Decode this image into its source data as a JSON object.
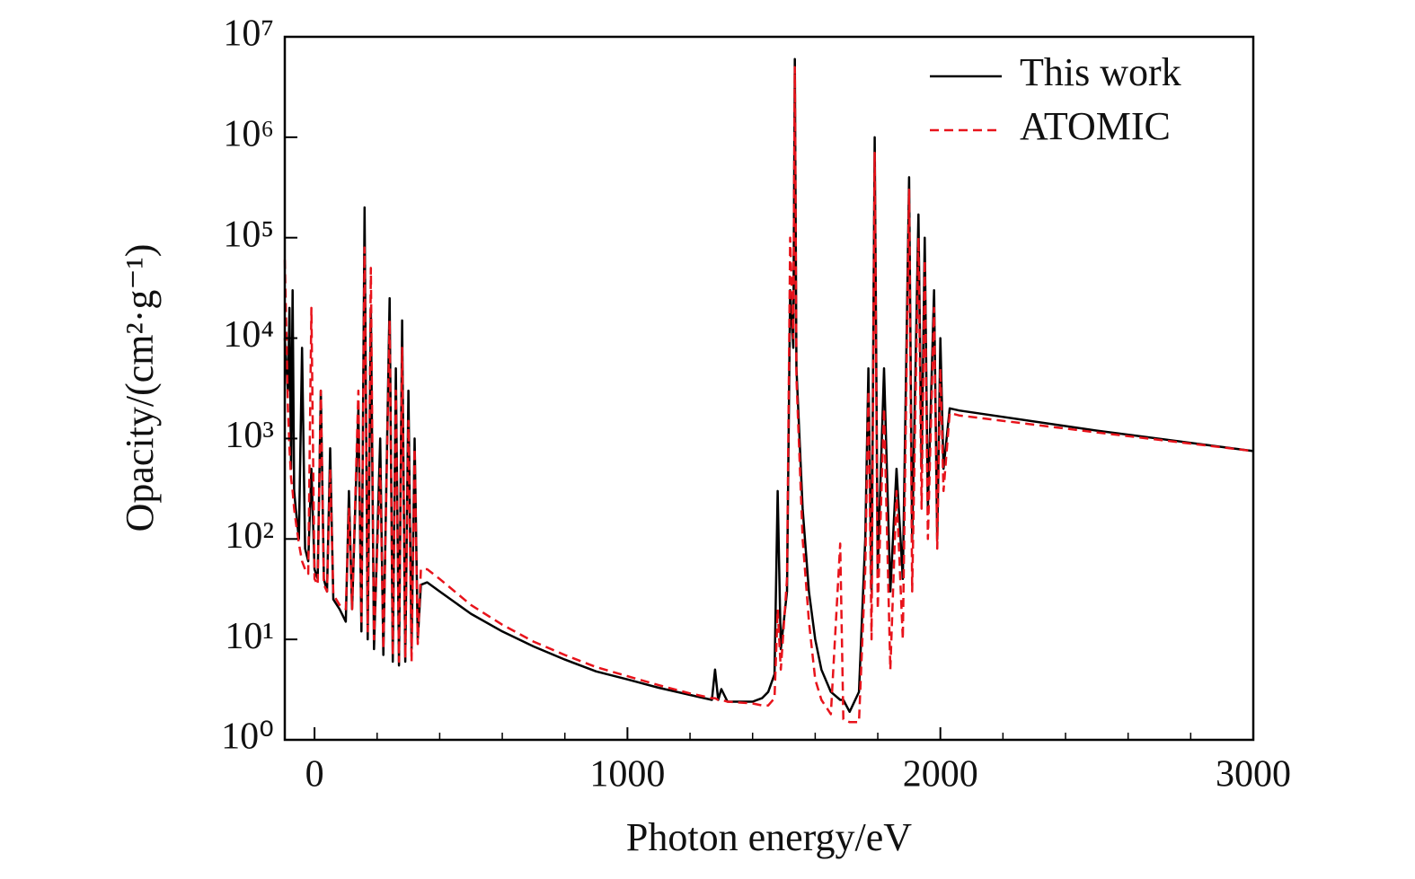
{
  "chart_data": {
    "type": "line",
    "xlabel": "Photon energy/eV",
    "ylabel": "Opacity/(cm²·g⁻¹)",
    "log_y": true,
    "xlim": [
      -95,
      3000
    ],
    "ylim": [
      1,
      10000000
    ],
    "xticks": [
      0,
      1000,
      2000,
      3000
    ],
    "xminorticks": [
      200,
      400,
      600,
      800,
      1200,
      1400,
      1600,
      1800,
      2200,
      2400,
      2600,
      2800
    ],
    "yticks": [
      {
        "value": 1,
        "label": "10⁰"
      },
      {
        "value": 10,
        "label": "10¹"
      },
      {
        "value": 100,
        "label": "10²"
      },
      {
        "value": 1000,
        "label": "10³"
      },
      {
        "value": 10000,
        "label": "10⁴"
      },
      {
        "value": 100000,
        "label": "10⁵"
      },
      {
        "value": 1000000,
        "label": "10⁶"
      },
      {
        "value": 10000000,
        "label": "10⁷"
      }
    ],
    "legend": "upper right",
    "x": [
      -95,
      -85,
      -80,
      -75,
      -70,
      -65,
      -60,
      -50,
      -40,
      -30,
      -20,
      -10,
      0,
      10,
      20,
      30,
      40,
      50,
      60,
      80,
      100,
      110,
      120,
      140,
      150,
      160,
      170,
      180,
      190,
      210,
      220,
      240,
      250,
      260,
      270,
      280,
      290,
      300,
      310,
      320,
      330,
      340,
      360,
      400,
      500,
      600,
      700,
      800,
      900,
      1000,
      1100,
      1200,
      1270,
      1280,
      1290,
      1300,
      1320,
      1400,
      1430,
      1450,
      1470,
      1480,
      1490,
      1510,
      1520,
      1530,
      1535,
      1540,
      1560,
      1580,
      1600,
      1620,
      1650,
      1680,
      1690,
      1710,
      1740,
      1760,
      1770,
      1780,
      1790,
      1800,
      1820,
      1840,
      1860,
      1880,
      1900,
      1910,
      1930,
      1940,
      1950,
      1960,
      1980,
      1990,
      2000,
      2010,
      2030,
      2060,
      2500,
      3000
    ],
    "series": [
      {
        "name": "This work",
        "color": "#000000",
        "dash": false,
        "values": [
          10000,
          3000,
          20000,
          500,
          30000,
          300,
          200,
          100,
          8000,
          80,
          60,
          500,
          50,
          40,
          3000,
          40,
          30,
          800,
          25,
          20,
          15,
          300,
          20,
          2000,
          12,
          200000,
          10,
          20000,
          8,
          1000,
          7,
          25000,
          6,
          5000,
          5.5,
          15000,
          6,
          3000,
          8,
          1000,
          10,
          35,
          37,
          30,
          18,
          12,
          8.5,
          6.3,
          4.8,
          4,
          3.3,
          2.8,
          2.5,
          5,
          2.5,
          3.2,
          2.4,
          2.4,
          2.6,
          3,
          4.5,
          300,
          8,
          30,
          30000,
          8000,
          6000000,
          5000,
          200,
          30,
          10,
          5,
          3,
          2.5,
          2.5,
          1.9,
          3,
          100,
          5000,
          30,
          1000000,
          50,
          5000,
          30,
          500,
          40,
          400000,
          100,
          170000,
          500,
          100000,
          200,
          30000,
          100,
          10000,
          500,
          2000,
          1900,
          1200,
          750
        ]
      },
      {
        "name": "ATOMIC",
        "color": "#e8131b",
        "dash": true,
        "values": [
          60000,
          2000,
          800,
          400,
          300,
          200,
          150,
          90,
          60,
          50,
          45,
          20000,
          40,
          35,
          3000,
          35,
          30,
          500,
          28,
          22,
          20,
          200,
          20,
          3000,
          15,
          80000,
          12,
          50000,
          10,
          500,
          8,
          15000,
          7,
          3000,
          6,
          8000,
          6.5,
          1500,
          6,
          800,
          9,
          50,
          50,
          40,
          22,
          14,
          9.5,
          7,
          5.3,
          4.3,
          3.5,
          2.9,
          2.6,
          2.6,
          2.5,
          2.5,
          2.4,
          2.3,
          2.2,
          2.2,
          2.6,
          20,
          5,
          40,
          100000,
          10000,
          5000000,
          4000,
          100,
          15,
          4,
          2.5,
          1.8,
          90,
          1.6,
          1.5,
          1.5,
          50,
          3000,
          10,
          700000,
          20,
          2000,
          5,
          300,
          10,
          300000,
          30,
          100000,
          200,
          60000,
          100,
          20000,
          80,
          5000,
          300,
          1800,
          1700,
          1150,
          750
        ]
      }
    ]
  }
}
